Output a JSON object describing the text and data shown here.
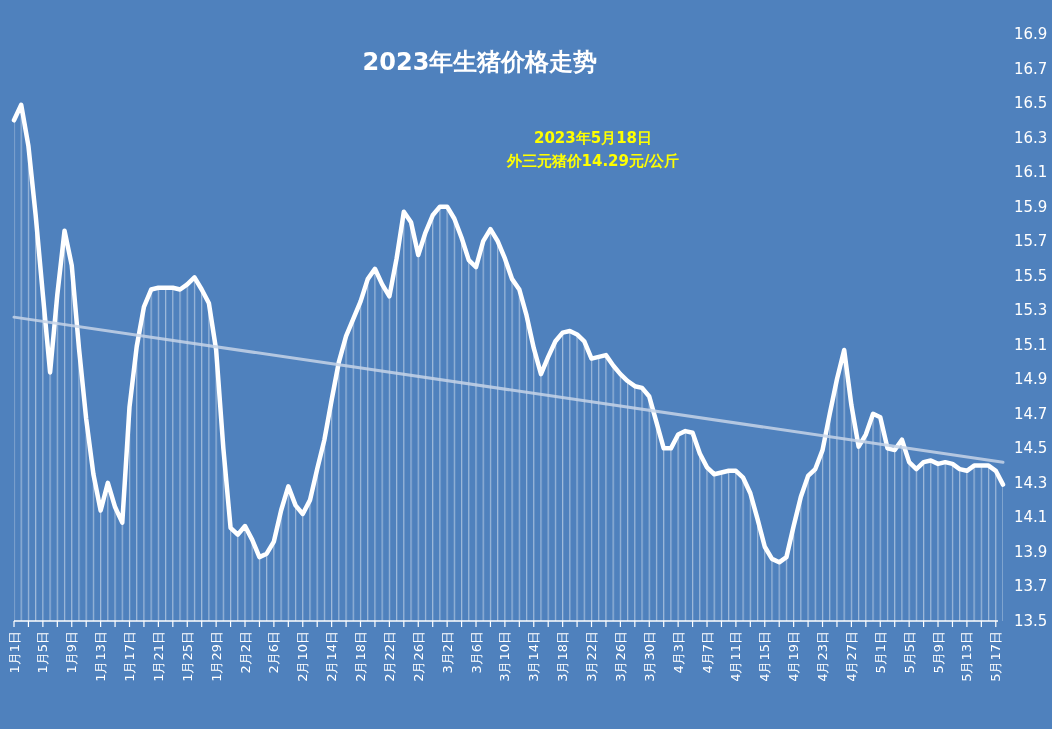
{
  "chart_data": {
    "type": "area",
    "title": "2023年生猪价格走势",
    "annotations": [
      "2023年5月18日",
      "外三元猪价14.29元/公斤"
    ],
    "x": [
      "--01-01",
      "--01-02",
      "--01-03",
      "--01-04",
      "--01-05",
      "--01-06",
      "--01-07",
      "--01-08",
      "--01-09",
      "--01-10",
      "--01-11",
      "--01-12",
      "--01-13",
      "--01-14",
      "--01-15",
      "--01-16",
      "--01-17",
      "--01-18",
      "--01-19",
      "--01-20",
      "--01-21",
      "--01-22",
      "--01-23",
      "--01-24",
      "--01-25",
      "--01-26",
      "--01-27",
      "--01-28",
      "--01-29",
      "--01-30",
      "--01-31",
      "--02-01",
      "--02-02",
      "--02-03",
      "--02-04",
      "--02-05",
      "--02-06",
      "--02-07",
      "--02-08",
      "--02-09",
      "--02-10",
      "--02-11",
      "--02-12",
      "--02-13",
      "--02-14",
      "--02-15",
      "--02-16",
      "--02-17",
      "--02-18",
      "--02-19",
      "--02-20",
      "--02-21",
      "--02-22",
      "--02-23",
      "--02-24",
      "--02-25",
      "--02-26",
      "--02-27",
      "--02-28",
      "--03-01",
      "--03-02",
      "--03-03",
      "--03-04",
      "--03-05",
      "--03-06",
      "--03-07",
      "--03-08",
      "--03-09",
      "--03-10",
      "--03-11",
      "--03-12",
      "--03-13",
      "--03-14",
      "--03-15",
      "--03-16",
      "--03-17",
      "--03-18",
      "--03-19",
      "--03-20",
      "--03-21",
      "--03-22",
      "--03-23",
      "--03-24",
      "--03-25",
      "--03-26",
      "--03-27",
      "--03-28",
      "--03-29",
      "--03-30",
      "--03-31",
      "--04-01",
      "--04-02",
      "--04-03",
      "--04-04",
      "--04-05",
      "--04-06",
      "--04-07",
      "--04-08",
      "--04-09",
      "--04-10",
      "--04-11",
      "--04-12",
      "--04-13",
      "--04-14",
      "--04-15",
      "--04-16",
      "--04-17",
      "--04-18",
      "--04-19",
      "--04-20",
      "--04-21",
      "--04-22",
      "--04-23",
      "--04-24",
      "--04-25",
      "--04-26",
      "--04-27",
      "--04-28",
      "--04-29",
      "--04-30",
      "--05-01",
      "--05-02",
      "--05-03",
      "--05-04",
      "--05-05",
      "--05-06",
      "--05-07",
      "--05-08",
      "--05-09",
      "--05-10",
      "--05-11",
      "--05-12",
      "--05-13",
      "--05-14",
      "--05-15",
      "--05-16",
      "--05-17",
      "--05-18"
    ],
    "series": [
      {
        "color": "#ffffff",
        "values": [
          16.4,
          16.49,
          16.25,
          15.85,
          15.39,
          14.94,
          15.39,
          15.76,
          15.56,
          15.08,
          14.67,
          14.35,
          14.14,
          14.3,
          14.16,
          14.07,
          14.74,
          15.09,
          15.32,
          15.42,
          15.43,
          15.43,
          15.43,
          15.42,
          15.45,
          15.49,
          15.42,
          15.34,
          15.07,
          14.5,
          14.04,
          14.0,
          14.05,
          13.97,
          13.87,
          13.89,
          13.96,
          14.14,
          14.28,
          14.17,
          14.12,
          14.2,
          14.38,
          14.55,
          14.78,
          15.0,
          15.15,
          15.25,
          15.35,
          15.48,
          15.54,
          15.45,
          15.38,
          15.6,
          15.87,
          15.81,
          15.62,
          15.75,
          15.85,
          15.9,
          15.9,
          15.83,
          15.72,
          15.59,
          15.55,
          15.7,
          15.77,
          15.7,
          15.6,
          15.48,
          15.42,
          15.27,
          15.08,
          14.93,
          15.03,
          15.12,
          15.17,
          15.18,
          15.16,
          15.12,
          15.02,
          15.03,
          15.04,
          14.98,
          14.93,
          14.89,
          14.86,
          14.85,
          14.8,
          14.65,
          14.5,
          14.5,
          14.58,
          14.6,
          14.59,
          14.47,
          14.39,
          14.35,
          14.36,
          14.37,
          14.37,
          14.33,
          14.24,
          14.09,
          13.93,
          13.86,
          13.84,
          13.87,
          14.05,
          14.22,
          14.34,
          14.38,
          14.49,
          14.7,
          14.9,
          15.07,
          14.75,
          14.51,
          14.58,
          14.7,
          14.68,
          14.5,
          14.49,
          14.55,
          14.42,
          14.38,
          14.42,
          14.43,
          14.41,
          14.42,
          14.41,
          14.38,
          14.37,
          14.4,
          14.4,
          14.4,
          14.37,
          14.29
        ]
      },
      {
        "type": "line",
        "color": "#c6d4e8",
        "x": [
          "--01-01",
          "--05-18"
        ],
        "values": [
          15.26,
          14.42
        ]
      }
    ],
    "xlim": [
      "--01-01",
      "--05-18"
    ],
    "xticks": [
      {
        "value": "--01-01",
        "label": "1月1日"
      },
      {
        "value": "--01-03",
        "label": null
      },
      {
        "value": "--01-05",
        "label": "1月5日"
      },
      {
        "value": "--01-07",
        "label": null
      },
      {
        "value": "--01-09",
        "label": "1月9日"
      },
      {
        "value": "--01-11",
        "label": null
      },
      {
        "value": "--01-13",
        "label": "1月13日"
      },
      {
        "value": "--01-15",
        "label": null
      },
      {
        "value": "--01-17",
        "label": "1月17日"
      },
      {
        "value": "--01-19",
        "label": null
      },
      {
        "value": "--01-21",
        "label": "1月21日"
      },
      {
        "value": "--01-23",
        "label": null
      },
      {
        "value": "--01-25",
        "label": "1月25日"
      },
      {
        "value": "--01-27",
        "label": null
      },
      {
        "value": "--01-29",
        "label": "1月29日"
      },
      {
        "value": "--01-31",
        "label": null
      },
      {
        "value": "--02-02",
        "label": "2月2日"
      },
      {
        "value": "--02-04",
        "label": null
      },
      {
        "value": "--02-06",
        "label": "2月6日"
      },
      {
        "value": "--02-08",
        "label": null
      },
      {
        "value": "--02-10",
        "label": "2月10日"
      },
      {
        "value": "--02-12",
        "label": null
      },
      {
        "value": "--02-14",
        "label": "2月14日"
      },
      {
        "value": "--02-16",
        "label": null
      },
      {
        "value": "--02-18",
        "label": "2月18日"
      },
      {
        "value": "--02-20",
        "label": null
      },
      {
        "value": "--02-22",
        "label": "2月22日"
      },
      {
        "value": "--02-24",
        "label": null
      },
      {
        "value": "--02-26",
        "label": "2月26日"
      },
      {
        "value": "--02-28",
        "label": null
      },
      {
        "value": "--03-02",
        "label": "3月2日"
      },
      {
        "value": "--03-04",
        "label": null
      },
      {
        "value": "--03-06",
        "label": "3月6日"
      },
      {
        "value": "--03-08",
        "label": null
      },
      {
        "value": "--03-10",
        "label": "3月10日"
      },
      {
        "value": "--03-12",
        "label": null
      },
      {
        "value": "--03-14",
        "label": "3月14日"
      },
      {
        "value": "--03-16",
        "label": null
      },
      {
        "value": "--03-18",
        "label": "3月18日"
      },
      {
        "value": "--03-20",
        "label": null
      },
      {
        "value": "--03-22",
        "label": "3月22日"
      },
      {
        "value": "--03-24",
        "label": null
      },
      {
        "value": "--03-26",
        "label": "3月26日"
      },
      {
        "value": "--03-28",
        "label": null
      },
      {
        "value": "--03-30",
        "label": "3月30日"
      },
      {
        "value": "--04-01",
        "label": null
      },
      {
        "value": "--04-03",
        "label": "4月3日"
      },
      {
        "value": "--04-05",
        "label": null
      },
      {
        "value": "--04-07",
        "label": "4月7日"
      },
      {
        "value": "--04-09",
        "label": null
      },
      {
        "value": "--04-11",
        "label": "4月11日"
      },
      {
        "value": "--04-13",
        "label": null
      },
      {
        "value": "--04-15",
        "label": "4月15日"
      },
      {
        "value": "--04-17",
        "label": null
      },
      {
        "value": "--04-19",
        "label": "4月19日"
      },
      {
        "value": "--04-21",
        "label": null
      },
      {
        "value": "--04-23",
        "label": "4月23日"
      },
      {
        "value": "--04-25",
        "label": null
      },
      {
        "value": "--04-27",
        "label": "4月27日"
      },
      {
        "value": "--04-29",
        "label": null
      },
      {
        "value": "--05-01",
        "label": "5月1日"
      },
      {
        "value": "--05-03",
        "label": null
      },
      {
        "value": "--05-05",
        "label": "5月5日"
      },
      {
        "value": "--05-07",
        "label": null
      },
      {
        "value": "--05-09",
        "label": "5月9日"
      },
      {
        "value": "--05-11",
        "label": null
      },
      {
        "value": "--05-13",
        "label": "5月13日"
      },
      {
        "value": "--05-15",
        "label": null
      },
      {
        "value": "--05-17",
        "label": "5月17日"
      }
    ],
    "ylim": [
      13.5,
      16.9
    ],
    "yticks": [
      13.5,
      13.7,
      13.9,
      14.1,
      14.3,
      14.5,
      14.7,
      14.9,
      15.1,
      15.3,
      15.5,
      15.7,
      15.9,
      16.1,
      16.3,
      16.5,
      16.7,
      16.9
    ],
    "marker": "none",
    "line_style": "solid"
  }
}
